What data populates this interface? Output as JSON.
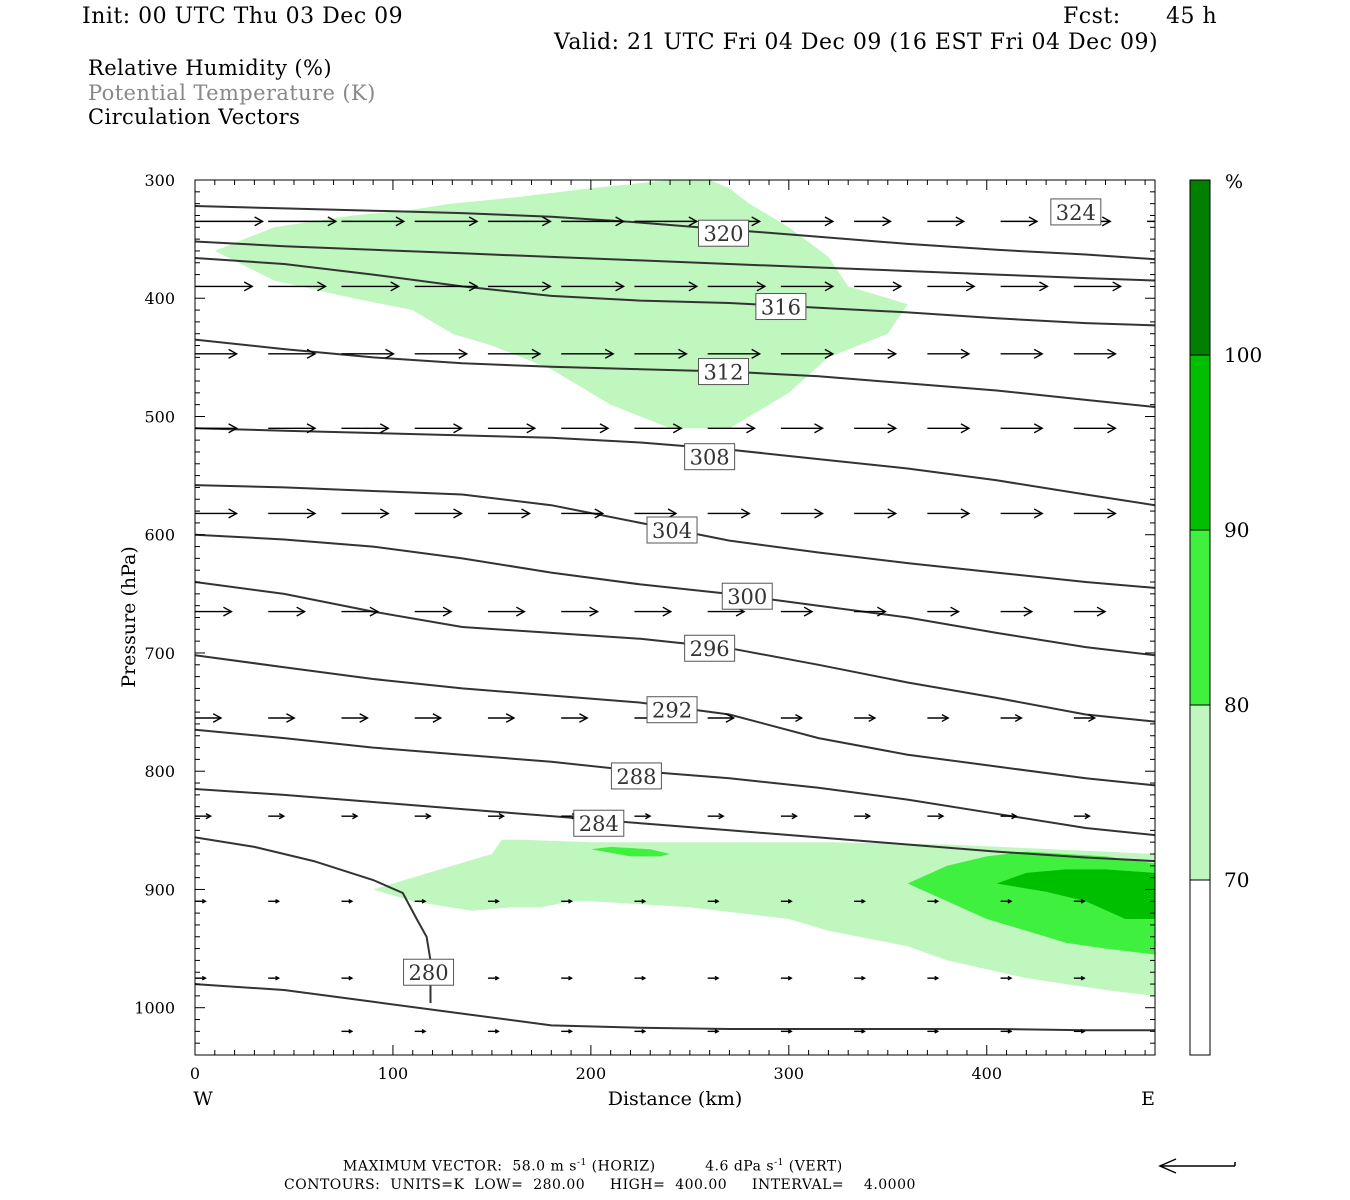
{
  "header": {
    "init": "Init: 00 UTC Thu 03 Dec 09",
    "fcst_label": "Fcst:",
    "fcst_value": "45 h",
    "valid": "Valid: 21 UTC Fri 04 Dec 09 (16 EST Fri 04 Dec 09)"
  },
  "legend": {
    "line1": "Relative Humidity (%)",
    "line2": "Potential Temperature (K)",
    "line3": "Circulation Vectors"
  },
  "footer": {
    "max_vector_label": "MAXIMUM VECTOR:",
    "horiz_value": "58.0 m s",
    "horiz_exp": "-1",
    "horiz_tag": "(HORIZ)",
    "vert_value": "4.6 dPa s",
    "vert_exp": "-1",
    "vert_tag": "(VERT)",
    "contours": "CONTOURS:  UNITS=K  LOW=  280.00     HIGH=  400.00     INTERVAL=    4.0000"
  },
  "colors": {
    "rh_70_80": "#bff7bf",
    "rh_80_90": "#3ff03f",
    "rh_90_100": "#00bf00",
    "rh_100": "#007f00",
    "theta_line": "#333333",
    "vector": "#000000"
  },
  "chart_data": {
    "type": "cross-section",
    "xlabel": "Distance (km)",
    "ylabel": "Pressure (hPa)",
    "xlim": [
      0,
      485
    ],
    "ylim": [
      1040,
      300
    ],
    "x_ticks": [
      0,
      100,
      200,
      300,
      400
    ],
    "y_ticks": [
      300,
      400,
      500,
      600,
      700,
      800,
      900,
      1000
    ],
    "x_end_labels": {
      "left": "W",
      "right": "E"
    },
    "colorbar": {
      "unit": "%",
      "levels": [
        70,
        80,
        90,
        100
      ],
      "fills": [
        "#ffffff",
        "#bff7bf",
        "#3ff03f",
        "#00bf00",
        "#007f00"
      ]
    },
    "theta_contours": [
      {
        "label": "324",
        "x": [
          0,
          45,
          90,
          135,
          180,
          225,
          270,
          315,
          360,
          405,
          450,
          485
        ],
        "p": [
          352,
          356,
          359,
          362,
          365,
          368,
          371,
          374,
          377,
          380,
          383,
          385
        ],
        "lx": 445,
        "lp": 327
      },
      {
        "label": "320",
        "x": [
          0,
          45,
          90,
          135,
          180,
          225,
          270,
          315,
          360,
          405,
          450,
          485
        ],
        "p": [
          322,
          324,
          326,
          328,
          331,
          336,
          342,
          348,
          354,
          359,
          363,
          367
        ],
        "lx": 267,
        "lp": 345
      },
      {
        "label": "316",
        "x": [
          0,
          45,
          90,
          135,
          180,
          225,
          270,
          315,
          360,
          405,
          450,
          485
        ],
        "p": [
          366,
          371,
          380,
          390,
          398,
          402,
          404,
          408,
          412,
          417,
          421,
          423
        ],
        "lx": 296,
        "lp": 407
      },
      {
        "label": "312",
        "x": [
          0,
          45,
          90,
          135,
          180,
          225,
          270,
          315,
          360,
          405,
          450,
          485
        ],
        "p": [
          435,
          443,
          450,
          455,
          458,
          460,
          462,
          466,
          472,
          478,
          486,
          492
        ],
        "lx": 267,
        "lp": 462
      },
      {
        "label": "308",
        "x": [
          0,
          45,
          90,
          135,
          180,
          225,
          270,
          315,
          360,
          405,
          450,
          485
        ],
        "p": [
          510,
          512,
          514,
          516,
          518,
          522,
          528,
          536,
          544,
          554,
          566,
          575
        ],
        "lx": 260,
        "lp": 534
      },
      {
        "label": "304",
        "x": [
          0,
          45,
          90,
          135,
          180,
          225,
          270,
          315,
          360,
          405,
          450,
          485
        ],
        "p": [
          558,
          560,
          563,
          566,
          575,
          590,
          605,
          615,
          624,
          632,
          640,
          645
        ],
        "lx": 241,
        "lp": 596
      },
      {
        "label": "300",
        "x": [
          0,
          45,
          90,
          135,
          180,
          225,
          270,
          315,
          360,
          405,
          450,
          485
        ],
        "p": [
          600,
          604,
          610,
          620,
          632,
          642,
          650,
          660,
          670,
          683,
          695,
          702
        ],
        "lx": 279,
        "lp": 652
      },
      {
        "label": "296",
        "x": [
          0,
          45,
          90,
          135,
          180,
          225,
          270,
          315,
          360,
          405,
          450,
          485
        ],
        "p": [
          640,
          650,
          665,
          678,
          683,
          688,
          696,
          710,
          725,
          738,
          752,
          758
        ],
        "lx": 260,
        "lp": 696
      },
      {
        "label": "292",
        "x": [
          0,
          45,
          90,
          135,
          180,
          225,
          270,
          315,
          360,
          405,
          450,
          485
        ],
        "p": [
          702,
          712,
          722,
          730,
          736,
          742,
          752,
          772,
          786,
          796,
          806,
          812
        ],
        "lx": 241,
        "lp": 748
      },
      {
        "label": "288",
        "x": [
          0,
          45,
          90,
          135,
          180,
          225,
          270,
          315,
          360,
          405,
          450,
          485
        ],
        "p": [
          765,
          772,
          780,
          786,
          792,
          800,
          806,
          814,
          824,
          836,
          848,
          854
        ],
        "lx": 223,
        "lp": 804
      },
      {
        "label": "284",
        "x": [
          0,
          45,
          90,
          135,
          180,
          225,
          270,
          315,
          360,
          405,
          450,
          485
        ],
        "p": [
          815,
          820,
          826,
          832,
          838,
          844,
          850,
          856,
          862,
          868,
          873,
          876
        ],
        "lx": 204,
        "lp": 844
      },
      {
        "label": "280",
        "x": [
          0,
          30,
          60,
          90,
          105,
          112,
          117,
          119,
          119,
          119
        ],
        "p": [
          856,
          864,
          876,
          892,
          903,
          925,
          940,
          960,
          980,
          996
        ],
        "lx": 118,
        "lp": 970
      },
      {
        "label": "",
        "x": [
          0,
          45,
          90,
          135,
          180,
          225,
          270,
          315,
          360,
          405,
          450,
          485
        ],
        "p": [
          980,
          985,
          995,
          1005,
          1015,
          1017,
          1018,
          1018,
          1018,
          1018,
          1019,
          1019
        ],
        "lx": null,
        "lp": null
      }
    ],
    "rh_regions": [
      {
        "level": "70-80",
        "x": [
          10,
          40,
          80,
          110,
          130,
          160,
          200,
          240,
          260,
          270,
          280,
          300,
          320,
          330,
          340,
          360,
          350,
          320,
          300,
          270,
          240,
          210,
          180,
          150,
          130,
          110,
          80,
          40,
          10
        ],
        "p": [
          360,
          340,
          330,
          325,
          320,
          315,
          307,
          300,
          300,
          307,
          320,
          340,
          365,
          390,
          395,
          405,
          430,
          450,
          480,
          510,
          510,
          490,
          460,
          440,
          430,
          410,
          400,
          385,
          360
        ]
      },
      {
        "level": "70-80",
        "x": [
          90,
          110,
          130,
          150,
          155,
          165,
          200,
          260,
          320,
          380,
          420,
          460,
          485,
          485,
          460,
          420,
          380,
          360,
          320,
          300,
          250,
          200,
          190,
          175,
          160,
          140,
          110,
          90
        ],
        "p": [
          900,
          890,
          880,
          870,
          858,
          858,
          860,
          860,
          860,
          862,
          865,
          868,
          870,
          990,
          985,
          975,
          960,
          948,
          935,
          925,
          915,
          910,
          910,
          915,
          915,
          918,
          910,
          900
        ]
      },
      {
        "level": "80-90",
        "x": [
          200,
          210,
          230,
          240,
          235,
          220,
          200
        ],
        "p": [
          866,
          864,
          866,
          870,
          872,
          872,
          866
        ]
      },
      {
        "level": "80-90",
        "x": [
          360,
          380,
          400,
          420,
          440,
          460,
          485,
          485,
          460,
          440,
          420,
          400,
          380,
          360
        ],
        "p": [
          895,
          880,
          872,
          868,
          870,
          872,
          878,
          955,
          950,
          945,
          935,
          925,
          910,
          895
        ]
      },
      {
        "level": "90-100",
        "x": [
          405,
          420,
          440,
          460,
          485,
          485,
          470,
          450,
          430,
          405
        ],
        "p": [
          895,
          886,
          883,
          883,
          886,
          925,
          925,
          910,
          902,
          895
        ]
      }
    ],
    "vector_rows": [
      {
        "p": 335,
        "x": [
          0,
          37,
          74,
          111,
          148,
          185,
          222,
          259,
          296,
          333,
          370,
          407,
          444,
          481
        ],
        "u": [
          26,
          26,
          24,
          24,
          24,
          24,
          24,
          20,
          20,
          14,
          14,
          14,
          14,
          12
        ]
      },
      {
        "p": 390,
        "x": [
          0,
          37,
          74,
          111,
          148,
          185,
          222,
          259,
          296,
          333,
          370,
          407,
          444
        ],
        "u": [
          22,
          22,
          22,
          24,
          24,
          24,
          24,
          22,
          20,
          18,
          18,
          18,
          18
        ]
      },
      {
        "p": 447,
        "x": [
          0,
          37,
          74,
          111,
          148,
          185,
          222,
          259,
          296,
          333,
          370,
          407,
          444
        ],
        "u": [
          16,
          18,
          20,
          20,
          20,
          20,
          20,
          20,
          20,
          16,
          16,
          16,
          16
        ]
      },
      {
        "p": 510,
        "x": [
          0,
          37,
          74,
          111,
          148,
          185,
          222,
          259,
          296,
          333,
          370,
          407,
          444
        ],
        "u": [
          16,
          18,
          18,
          18,
          18,
          18,
          18,
          18,
          16,
          16,
          16,
          16,
          16
        ]
      },
      {
        "p": 582,
        "x": [
          0,
          37,
          74,
          111,
          148,
          185,
          222,
          259,
          296,
          333,
          370,
          407,
          444
        ],
        "u": [
          16,
          18,
          18,
          18,
          16,
          16,
          16,
          16,
          16,
          16,
          16,
          16,
          16
        ]
      },
      {
        "p": 665,
        "x": [
          0,
          37,
          74,
          111,
          148,
          185,
          222,
          259,
          296,
          333,
          370,
          407,
          444
        ],
        "u": [
          14,
          14,
          14,
          14,
          14,
          14,
          14,
          14,
          12,
          12,
          12,
          12,
          12
        ]
      },
      {
        "p": 755,
        "x": [
          0,
          37,
          74,
          111,
          148,
          185,
          222,
          259,
          296,
          333,
          370,
          407,
          444
        ],
        "u": [
          10,
          10,
          10,
          10,
          10,
          10,
          10,
          10,
          8,
          8,
          8,
          8,
          8
        ]
      },
      {
        "p": 838,
        "x": [
          0,
          37,
          74,
          111,
          148,
          185,
          222,
          259,
          296,
          333,
          370,
          407,
          444
        ],
        "u": [
          6,
          6,
          6,
          6,
          6,
          6,
          6,
          6,
          6,
          6,
          6,
          6,
          6
        ]
      },
      {
        "p": 910,
        "x": [
          0,
          37,
          74,
          111,
          148,
          185,
          222,
          259,
          296,
          333,
          370,
          407,
          444
        ],
        "u": [
          4,
          4,
          4,
          4,
          4,
          4,
          4,
          4,
          4,
          4,
          4,
          4,
          4
        ]
      },
      {
        "p": 975,
        "x": [
          0,
          37,
          74,
          111,
          148,
          185,
          222,
          259,
          296,
          333,
          370,
          407,
          444
        ],
        "u": [
          4,
          4,
          4,
          4,
          4,
          4,
          4,
          4,
          4,
          4,
          4,
          4,
          4
        ]
      },
      {
        "p": 1020,
        "x": [
          74,
          111,
          148,
          185,
          222,
          259,
          296,
          333,
          370,
          407,
          444
        ],
        "u": [
          4,
          4,
          4,
          4,
          4,
          4,
          4,
          4,
          4,
          4,
          4
        ]
      }
    ]
  }
}
